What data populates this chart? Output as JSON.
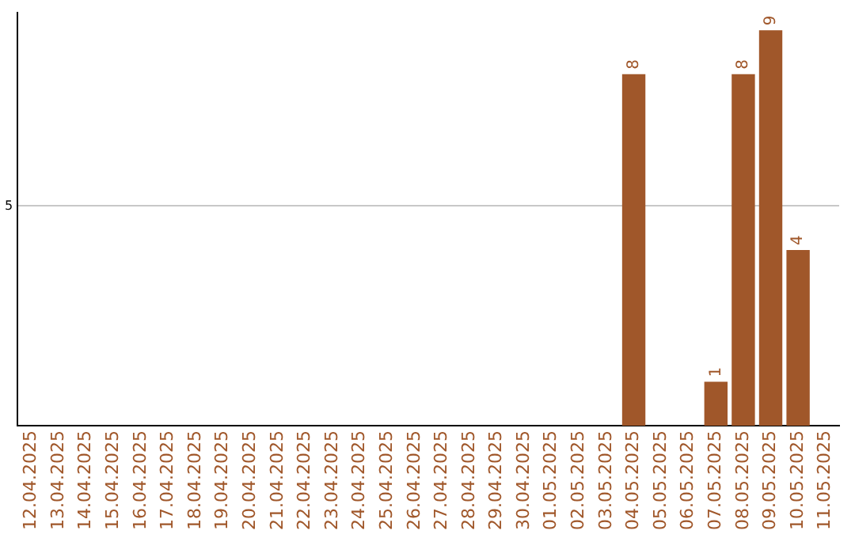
{
  "chart_data": {
    "type": "bar",
    "categories": [
      "12.04.2025",
      "13.04.2025",
      "14.04.2025",
      "15.04.2025",
      "16.04.2025",
      "17.04.2025",
      "18.04.2025",
      "19.04.2025",
      "20.04.2025",
      "21.04.2025",
      "22.04.2025",
      "23.04.2025",
      "24.04.2025",
      "25.04.2025",
      "26.04.2025",
      "27.04.2025",
      "28.04.2025",
      "29.04.2025",
      "30.04.2025",
      "01.05.2025",
      "02.05.2025",
      "03.05.2025",
      "04.05.2025",
      "05.05.2025",
      "06.05.2025",
      "07.05.2025",
      "08.05.2025",
      "09.05.2025",
      "10.05.2025",
      "11.05.2025"
    ],
    "values": [
      null,
      null,
      null,
      null,
      null,
      null,
      null,
      null,
      null,
      null,
      null,
      null,
      null,
      null,
      null,
      null,
      null,
      null,
      null,
      null,
      null,
      null,
      8,
      null,
      null,
      1,
      8,
      9,
      4,
      null
    ],
    "color": "#a0572a",
    "ylim": [
      0,
      9.4
    ],
    "yticks": [
      5
    ],
    "grid": "y",
    "data_labels": true
  }
}
